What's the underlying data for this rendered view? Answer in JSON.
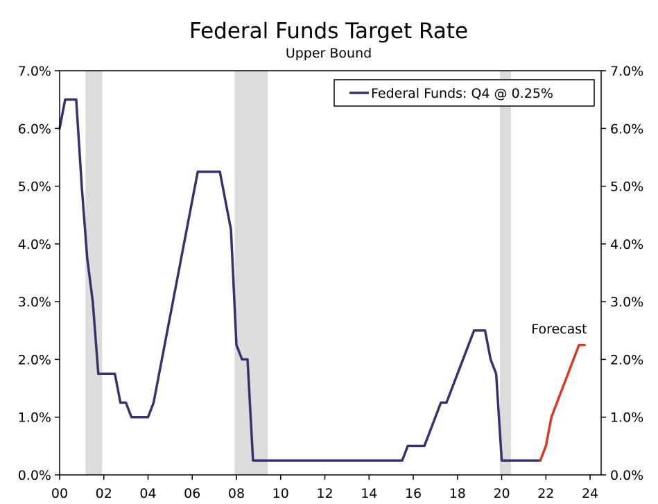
{
  "chart_data": {
    "type": "line",
    "title": "Federal Funds Target Rate",
    "subtitle": "Upper Bound",
    "xlabel": "",
    "ylabel": "",
    "xlim": [
      2000,
      2024.5
    ],
    "ylim": [
      0,
      7
    ],
    "grid": false,
    "x_tick_values": [
      2000,
      2002,
      2004,
      2006,
      2008,
      2010,
      2012,
      2014,
      2016,
      2018,
      2020,
      2022,
      2024
    ],
    "x_tick_labels": [
      "00",
      "02",
      "04",
      "06",
      "08",
      "10",
      "12",
      "14",
      "16",
      "18",
      "20",
      "22",
      "24"
    ],
    "y_tick_values": [
      0,
      1,
      2,
      3,
      4,
      5,
      6,
      7
    ],
    "y_tick_labels": [
      "0.0%",
      "1.0%",
      "2.0%",
      "3.0%",
      "4.0%",
      "5.0%",
      "6.0%",
      "7.0%"
    ],
    "recessions": [
      {
        "start": 2001.17,
        "end": 2001.92
      },
      {
        "start": 2007.92,
        "end": 2009.42
      },
      {
        "start": 2019.92,
        "end": 2020.42
      }
    ],
    "legend": {
      "label": "Federal Funds: Q4 @ 0.25%",
      "position": "top-right"
    },
    "annotations": [
      {
        "text": "Forecast",
        "x": 2022.6,
        "y": 2.45
      }
    ],
    "series": [
      {
        "name": "Federal Funds: Q4 @ 0.25%",
        "color": "#3b2f6e",
        "points": [
          [
            2000.0,
            6.0
          ],
          [
            2000.25,
            6.5
          ],
          [
            2000.5,
            6.5
          ],
          [
            2000.75,
            6.5
          ],
          [
            2001.0,
            5.0
          ],
          [
            2001.25,
            3.75
          ],
          [
            2001.5,
            3.0
          ],
          [
            2001.75,
            1.75
          ],
          [
            2002.0,
            1.75
          ],
          [
            2002.25,
            1.75
          ],
          [
            2002.5,
            1.75
          ],
          [
            2002.75,
            1.25
          ],
          [
            2003.0,
            1.25
          ],
          [
            2003.25,
            1.0
          ],
          [
            2003.5,
            1.0
          ],
          [
            2003.75,
            1.0
          ],
          [
            2004.0,
            1.0
          ],
          [
            2004.25,
            1.25
          ],
          [
            2006.25,
            5.25
          ],
          [
            2006.5,
            5.25
          ],
          [
            2006.75,
            5.25
          ],
          [
            2007.0,
            5.25
          ],
          [
            2007.25,
            5.25
          ],
          [
            2007.75,
            4.25
          ],
          [
            2008.0,
            2.25
          ],
          [
            2008.25,
            2.0
          ],
          [
            2008.5,
            2.0
          ],
          [
            2008.75,
            0.25
          ],
          [
            2015.5,
            0.25
          ],
          [
            2015.75,
            0.5
          ],
          [
            2016.5,
            0.5
          ],
          [
            2017.25,
            1.25
          ],
          [
            2017.5,
            1.25
          ],
          [
            2018.75,
            2.5
          ],
          [
            2019.0,
            2.5
          ],
          [
            2019.25,
            2.5
          ],
          [
            2019.5,
            2.0
          ],
          [
            2019.75,
            1.75
          ],
          [
            2020.0,
            0.25
          ],
          [
            2021.75,
            0.25
          ]
        ]
      },
      {
        "name": "Forecast",
        "color": "#d73b27",
        "points": [
          [
            2021.75,
            0.25
          ],
          [
            2022.0,
            0.5
          ],
          [
            2022.25,
            1.0
          ],
          [
            2023.5,
            2.25
          ],
          [
            2023.75,
            2.25
          ]
        ]
      }
    ]
  }
}
